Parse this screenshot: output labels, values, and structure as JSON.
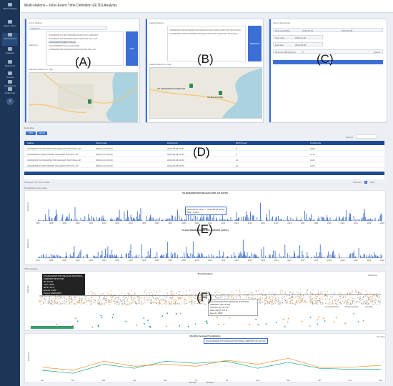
{
  "app": {
    "title": "Multi-stations – Inter-Event Time Definition (IETD) Analysis"
  },
  "sidebar": {
    "items": [
      {
        "label": "IETD Analysis",
        "icon": "rain-icon"
      },
      {
        "label": "Single station",
        "icon": "station-icon"
      },
      {
        "label": "Multi-stations",
        "icon": "stations-icon"
      },
      {
        "label": "Datasets",
        "icon": "database-icon"
      },
      {
        "label": "Resources",
        "icon": "book-icon"
      },
      {
        "label": "Contact",
        "icon": "mail-icon"
      },
      {
        "label": "Contributors",
        "icon": "people-icon"
      },
      {
        "label": "Guide Tour",
        "icon": "tour-icon"
      }
    ],
    "collapse": "‹"
  },
  "panelA": {
    "list_title": "List of stations",
    "state": "Maryland",
    "stations_label": "Station(s)",
    "add_button": "ADD",
    "map_title": "Selected stations on map",
    "stations": [
      "USW00093721 BALTIMORE WASH INTL AIRPORT",
      "USW00013743 WASHINGTON REAGAN NATL AP",
      "USC00180700 BELTSVILLE",
      "USC00182060 COLLEGE PARK",
      "USW00093738 WASHINGTON DULLES INTL AP"
    ]
  },
  "panelB": {
    "title": "Added stations",
    "stations": [
      "USW00013743 WASHINGTON REAGAN NATIONAL AIRPORT (ID:13743)",
      "USW00093721 BALTIMORE WASHINGTON INTL AIRPORT (ID:93721)"
    ],
    "remove_button": "REMOVE",
    "map_title": "Added stations on map"
  },
  "panelC": {
    "title": "Select data period",
    "data_availability": "Data availability",
    "start": "1948-01-01",
    "end": "2023-08-08",
    "start_date_label": "Start date",
    "start_date": "2000-01-01",
    "end_date_label": "End date",
    "end_date": "2023-08-08",
    "min_ietd_label": "Minimum IETD (hour)",
    "min_ietd": "6",
    "submit_label": "Submit",
    "analyze_button": "ANALYZE"
  },
  "tableD": {
    "toggle": "Data table",
    "btn_csv": "CSV",
    "btn_excel": "Excel",
    "search_label": "Search:",
    "headers": [
      "Station",
      "Period start",
      "Period end",
      "IETD (hour)",
      "# of Events"
    ],
    "rows": [
      [
        "USW00013743 WASHINGTON REAGAN NATIONAL AP",
        "2000-01-01 00:00",
        "2023-08-08 00:00",
        "8",
        "1582"
      ],
      [
        "USW00093721 BALTIMORE WASHINGTON INTL AP",
        "2000-01-01 00:00",
        "2023-08-08 00:00",
        "6",
        "1771"
      ],
      [
        "USW00013743 WASHINGTON REAGAN NATIONAL AP",
        "2000-01-01 00:00",
        "2023-08-08 00:00",
        "12",
        "1320"
      ],
      [
        "USW00093721 BALTIMORE WASHINGTON INTL AP",
        "2000-01-01 00:00",
        "2023-08-08 00:00",
        "10",
        "1402"
      ]
    ],
    "showing": "Showing 1 to 4 of 4 entries",
    "prev": "Previous",
    "page": "1",
    "next": "Next"
  },
  "chartE": {
    "toggle": "Precipitation time series",
    "title1": "US-WASHINGTON REAGAN NATL AP (13743)",
    "title2": "US-BALTIMORE WASH INTL AIRPORT (93721)",
    "ylabel": "Precip. (in)",
    "tooltip1": "2011-08-27 19:00 → 2011-08-28 01:00",
    "tooltip2": "Rain: 1.48 in",
    "years": [
      "1997",
      "1998",
      "1999",
      "2000",
      "2001",
      "2002",
      "2003",
      "2004",
      "2005",
      "2006",
      "2007",
      "2008",
      "2009",
      "2010",
      "2011",
      "2012",
      "2013",
      "2014",
      "2015",
      "2016",
      "2017",
      "2018",
      "2019",
      "2020",
      "2021",
      "2022",
      "2023"
    ]
  },
  "chartF": {
    "toggle": "IETD analysis",
    "title": "Trend Analysis",
    "ylabel": "IETD (hr)",
    "legend": [
      "Linear Regression",
      "Preliminary Data",
      "Trend line"
    ],
    "extra_legend": "Trend Line",
    "tooltip": [
      "US-WASHINGTON REAGAN NATIONAL AIRPORT (ID:13743)",
      "ID: 13743",
      "Year: 2006",
      "IETD: 12 hr",
      "Events: 1320",
      "Period: 2000-2023"
    ],
    "tooltip2": [
      "US-WASHINGTON REAGAN NATIONAL AIRPORT (ID:13743)",
      "Total Precip: 41.5 in",
      "Mean IETD: 8.2 hr",
      "Events: 1582"
    ]
  },
  "chartG": {
    "title": "Monthly Average Precipitation",
    "ylabel": "Precip. (in)",
    "tooltip": "US-WASHINGTON REAGAN NATIONAL AIRPORT (ID:13743)",
    "legend": [
      "ID:13743",
      "ID:93721"
    ],
    "months": [
      "Jan",
      "Feb",
      "Mar",
      "Apr",
      "May",
      "Jun",
      "Jul",
      "Aug",
      "Sep",
      "Oct",
      "Nov",
      "Dec"
    ],
    "all_years": "All Years"
  },
  "letters": {
    "A": "(A)",
    "B": "(B)",
    "C": "(C)",
    "D": "(D)",
    "E": "(E)",
    "F": "(F)"
  },
  "colors": {
    "accent": "#3b6fd6",
    "sidebar": "#1d3557",
    "bars": "#2f62c4",
    "orange": "#f28e2b",
    "teal": "#17a589"
  }
}
